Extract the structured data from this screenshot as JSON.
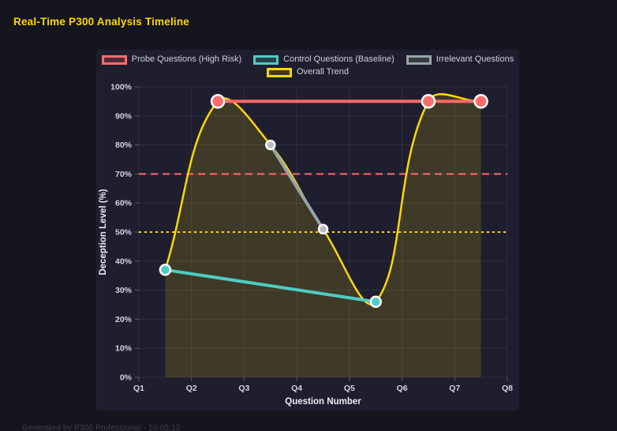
{
  "page": {
    "title": "Real-Time P300 Analysis Timeline",
    "footer": "Generated by P300 Professional - 10:05:12"
  },
  "colors": {
    "page_bg": "#15151f",
    "panel_bg": "#1e1e2f",
    "grid": "rgba(255,255,255,0.08)",
    "tick_mark": "rgba(255,255,255,0.28)",
    "title_text": "#ffd700",
    "tick_label_text": "#d6d6de",
    "axis_title_text": "#eceef2",
    "legend_text": "#cfd0d8",
    "footer_text": "#3e3e52",
    "point_border": "#ffffff"
  },
  "chart_data": {
    "type": "line",
    "title": "Real-Time P300 Analysis Timeline",
    "xlabel": "Question Number",
    "ylabel": "Deception Level (%)",
    "x_range": [
      1,
      8
    ],
    "ylim": [
      0,
      100
    ],
    "y_tick_step": 10,
    "y_tick_suffix": "%",
    "x_tick_labels": [
      "Q1",
      "Q2",
      "Q3",
      "Q4",
      "Q5",
      "Q6",
      "Q7",
      "Q8"
    ],
    "grid": true,
    "legend_position": "top",
    "series": [
      {
        "name": "Probe Questions (High Risk)",
        "color": "#ff6b6b",
        "x": [
          2.5,
          6.5,
          7.5
        ],
        "values": [
          95,
          95,
          95
        ],
        "line_width": 4,
        "point_radius": 8,
        "smooth": false,
        "fill": false
      },
      {
        "name": "Control Questions (Baseline)",
        "color": "#4ecdc4",
        "x": [
          1.5,
          5.5
        ],
        "values": [
          37,
          26
        ],
        "line_width": 4,
        "point_radius": 6.5,
        "smooth": false,
        "fill": false
      },
      {
        "name": "Irrelevant Questions",
        "color": "#95a5a6",
        "point_color": "#b4bcbd",
        "x": [
          3.5,
          4.5
        ],
        "values": [
          80,
          51
        ],
        "line_width": 4,
        "point_radius": 5.5,
        "smooth": false,
        "fill": false
      },
      {
        "name": "Overall Trend",
        "color": "#ffd700",
        "x": [
          1.5,
          2.5,
          3.5,
          4.5,
          5.5,
          6.5,
          7.5
        ],
        "values": [
          37,
          95,
          80,
          51,
          26,
          95,
          95
        ],
        "line_width": 2.5,
        "point_radius": 0,
        "smooth": true,
        "tension": 0.4,
        "fill": true,
        "fill_color": "rgba(255,215,0,0.15)"
      }
    ],
    "thresholds": [
      {
        "value": 70,
        "color": "#ff6b6b",
        "dash": [
          9,
          6
        ],
        "width": 2
      },
      {
        "value": 50,
        "color": "#ffd700",
        "dash": [
          3,
          4
        ],
        "width": 2
      }
    ],
    "legend_rows": [
      [
        0,
        1,
        2
      ],
      [
        3
      ]
    ]
  }
}
